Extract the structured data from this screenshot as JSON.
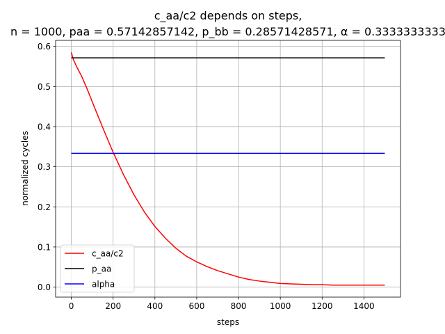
{
  "chart_data": {
    "type": "line",
    "title_line1": "c_aa/c2 depends on steps,",
    "title_line2": "n = 1000, paa = 0.57142857142, p_bb = 0.28571428571, α = 0.3333333333",
    "xlabel": "steps",
    "ylabel": "normalized cycles",
    "xlim": [
      -75,
      1575
    ],
    "ylim": [
      -0.025,
      0.615
    ],
    "xticks": [
      0,
      200,
      400,
      600,
      800,
      1000,
      1200,
      1400
    ],
    "xtick_labels": [
      "0",
      "200",
      "400",
      "600",
      "800",
      "1000",
      "1200",
      "1400"
    ],
    "yticks": [
      0.0,
      0.1,
      0.2,
      0.3,
      0.4,
      0.5,
      0.6
    ],
    "ytick_labels": [
      "0.0",
      "0.1",
      "0.2",
      "0.3",
      "0.4",
      "0.5",
      "0.6"
    ],
    "grid": true,
    "legend_position": "lower-left",
    "series": [
      {
        "name": "c_aa/c2",
        "color": "#ff0000",
        "x": [
          0,
          10,
          25,
          50,
          75,
          100,
          150,
          200,
          250,
          300,
          350,
          400,
          450,
          500,
          550,
          600,
          650,
          700,
          750,
          800,
          850,
          900,
          950,
          1000,
          1050,
          1100,
          1150,
          1200,
          1250,
          1300,
          1350,
          1400,
          1450,
          1500
        ],
        "y": [
          0.585,
          0.567,
          0.55,
          0.525,
          0.495,
          0.462,
          0.398,
          0.336,
          0.28,
          0.23,
          0.187,
          0.151,
          0.122,
          0.097,
          0.077,
          0.063,
          0.051,
          0.041,
          0.033,
          0.025,
          0.019,
          0.015,
          0.012,
          0.009,
          0.008,
          0.007,
          0.006,
          0.006,
          0.005,
          0.005,
          0.005,
          0.005,
          0.005,
          0.005
        ]
      },
      {
        "name": "p_aa",
        "color": "#000000",
        "x": [
          0,
          1500
        ],
        "y": [
          0.5714,
          0.5714
        ]
      },
      {
        "name": "alpha",
        "color": "#0000ff",
        "x": [
          0,
          1500
        ],
        "y": [
          0.3333,
          0.3333
        ]
      }
    ]
  }
}
